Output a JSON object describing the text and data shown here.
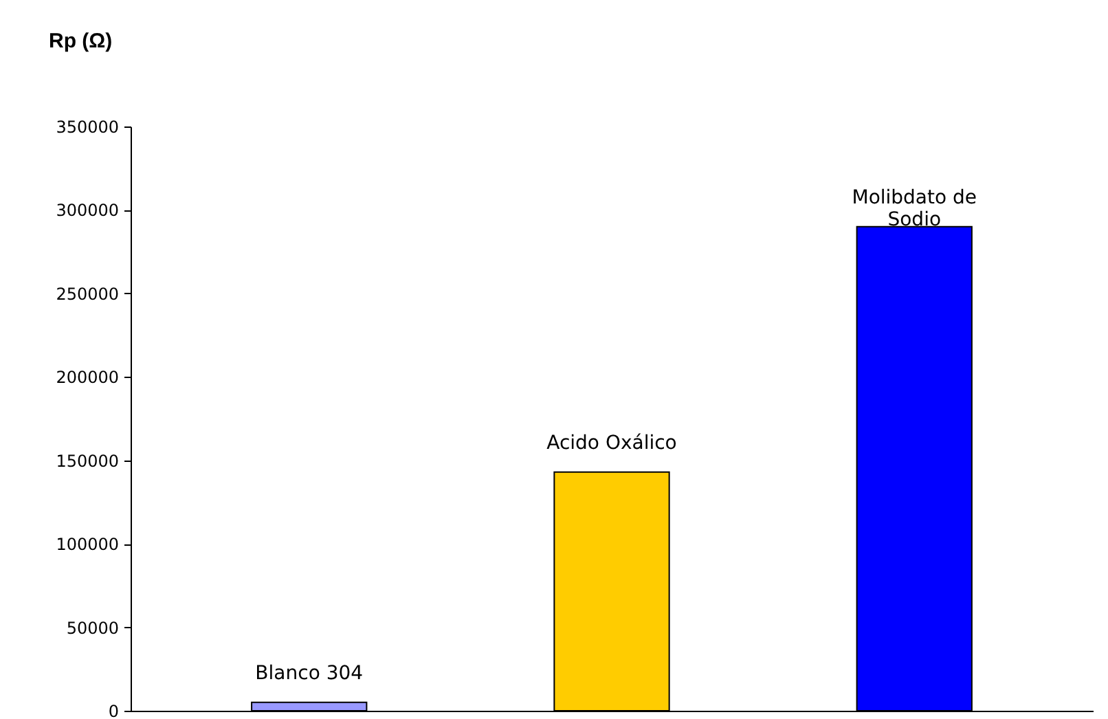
{
  "chart_data": {
    "type": "bar",
    "ylabel": "Rp (Ω)",
    "categories": [
      "Blanco 304",
      "Acido Oxálico",
      "Molibdato de Sodio"
    ],
    "values": [
      5000,
      143000,
      290000
    ],
    "colors": [
      "#9999ff",
      "#ffcc00",
      "#0000ff"
    ],
    "ylim": [
      0,
      350000
    ],
    "yticks": [
      0,
      50000,
      100000,
      150000,
      200000,
      250000,
      300000,
      350000
    ],
    "grid": false
  }
}
